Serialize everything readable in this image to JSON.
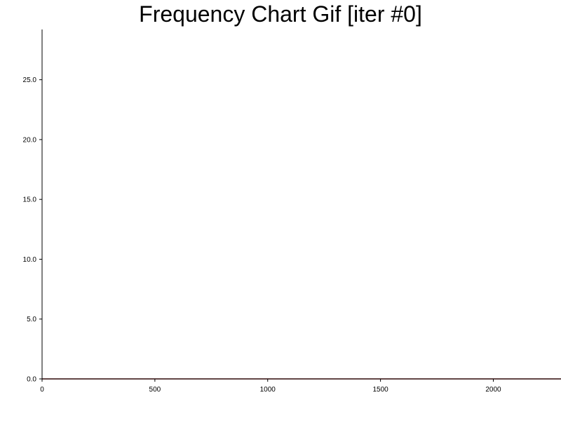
{
  "chart_data": {
    "type": "line",
    "title": "Frequency Chart Gif [iter #0]",
    "xlabel": "",
    "ylabel": "",
    "xlim": [
      0,
      2300
    ],
    "ylim": [
      0,
      29.2
    ],
    "x_ticks": [
      0,
      500,
      1000,
      1500,
      2000
    ],
    "x_tick_labels": [
      "0",
      "500",
      "1000",
      "1500",
      "2000"
    ],
    "y_ticks": [
      0,
      5,
      10,
      15,
      20,
      25
    ],
    "y_tick_labels": [
      "0.0",
      "5.0",
      "10.0",
      "15.0",
      "20.0",
      "25.0"
    ],
    "grid": false,
    "series": [
      {
        "color": "#8b1a1a",
        "x": [
          0,
          2300
        ],
        "y": [
          0,
          0
        ]
      }
    ],
    "colors": {
      "axis": "#000000",
      "series": "#8b1a1a"
    }
  }
}
